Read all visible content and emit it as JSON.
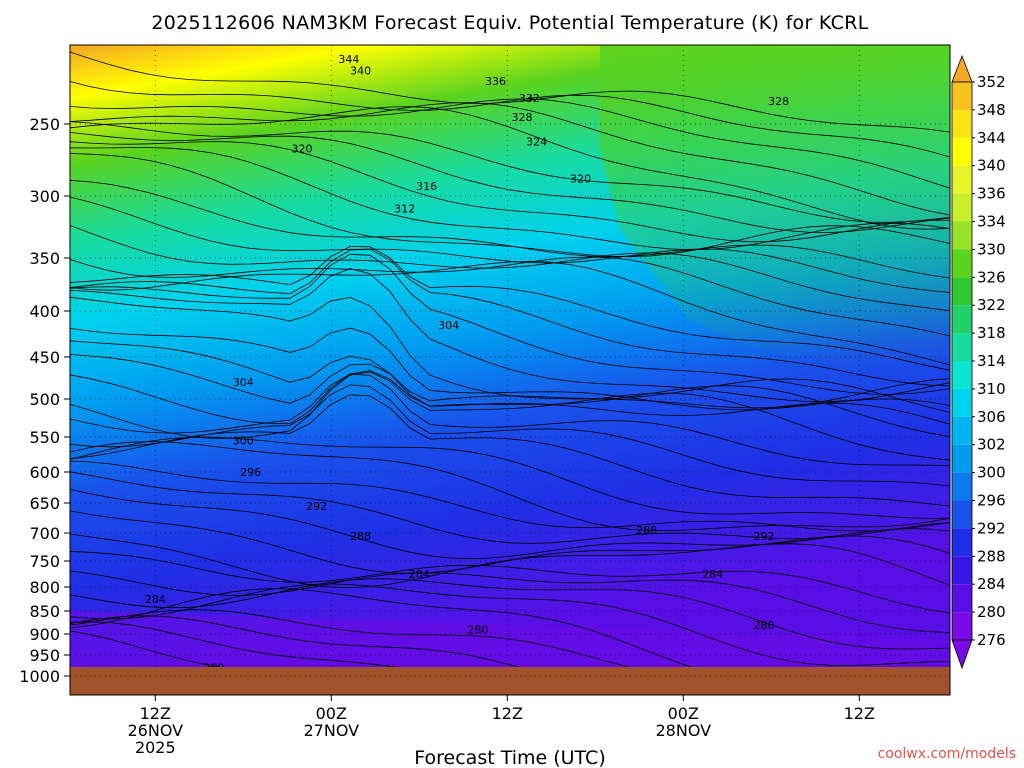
{
  "chart_data": {
    "type": "heatmap",
    "title": "2025112606 NAM3KM Forecast Equiv. Potential Temperature (K) for KCRL",
    "xlabel": "Forecast Time (UTC)",
    "ylabel": "",
    "credit": "coolwx.com/models",
    "pressure_levels": [
      250,
      300,
      350,
      400,
      450,
      500,
      550,
      600,
      650,
      700,
      750,
      800,
      850,
      900,
      950,
      1000
    ],
    "x_ticks": [
      {
        "hour": 6,
        "label": [
          "12Z",
          "26NOV",
          "2025"
        ]
      },
      {
        "hour": 18,
        "label": [
          "00Z",
          "27NOV"
        ]
      },
      {
        "hour": 30,
        "label": [
          "12Z"
        ]
      },
      {
        "hour": 42,
        "label": [
          "00Z",
          "28NOV"
        ]
      },
      {
        "hour": 54,
        "label": [
          "12Z"
        ]
      }
    ],
    "x_range_hours": [
      0,
      60
    ],
    "y_range_hPa": [
      200,
      1030
    ],
    "colorbar": {
      "levels": [
        352,
        348,
        344,
        340,
        336,
        334,
        330,
        326,
        322,
        318,
        314,
        310,
        306,
        302,
        300,
        296,
        292,
        288,
        284,
        280,
        276
      ],
      "colors": [
        "#f5a623",
        "#f8c21e",
        "#fbe414",
        "#ffff00",
        "#e6f52a",
        "#c8ee2c",
        "#99e22a",
        "#5bd31f",
        "#2ec832",
        "#22d06a",
        "#18dba0",
        "#0be6d2",
        "#00d2ee",
        "#00b6f2",
        "#009cf0",
        "#0a7aee",
        "#1a52ec",
        "#1f2fe6",
        "#3a16e4",
        "#5a0ee6",
        "#7a0ae8"
      ]
    },
    "contour_labels": [
      {
        "value": "344",
        "hour": 19.2,
        "p": 205
      },
      {
        "value": "340",
        "hour": 20.0,
        "p": 213
      },
      {
        "value": "336",
        "hour": 29.2,
        "p": 220
      },
      {
        "value": "332",
        "hour": 31.5,
        "p": 232
      },
      {
        "value": "328",
        "hour": 31.0,
        "p": 245
      },
      {
        "value": "328",
        "hour": 48.5,
        "p": 234
      },
      {
        "value": "324",
        "hour": 32.0,
        "p": 262
      },
      {
        "value": "320",
        "hour": 16.0,
        "p": 267
      },
      {
        "value": "320",
        "hour": 35.0,
        "p": 288
      },
      {
        "value": "316",
        "hour": 24.5,
        "p": 293
      },
      {
        "value": "312",
        "hour": 23.0,
        "p": 310
      },
      {
        "value": "304",
        "hour": 26.0,
        "p": 415
      },
      {
        "value": "304",
        "hour": 12.0,
        "p": 480
      },
      {
        "value": "300",
        "hour": 12.0,
        "p": 555
      },
      {
        "value": "296",
        "hour": 12.5,
        "p": 600
      },
      {
        "value": "292",
        "hour": 17.0,
        "p": 655
      },
      {
        "value": "288",
        "hour": 20.0,
        "p": 705
      },
      {
        "value": "288",
        "hour": 39.5,
        "p": 695
      },
      {
        "value": "292",
        "hour": 47.5,
        "p": 705
      },
      {
        "value": "284",
        "hour": 24.0,
        "p": 775
      },
      {
        "value": "284",
        "hour": 44.0,
        "p": 775
      },
      {
        "value": "284",
        "hour": 6.0,
        "p": 825
      },
      {
        "value": "280",
        "hour": 28.0,
        "p": 890
      },
      {
        "value": "280",
        "hour": 47.5,
        "p": 880
      },
      {
        "value": "280",
        "hour": 10.0,
        "p": 980
      }
    ],
    "grid": true,
    "legend": "right"
  }
}
